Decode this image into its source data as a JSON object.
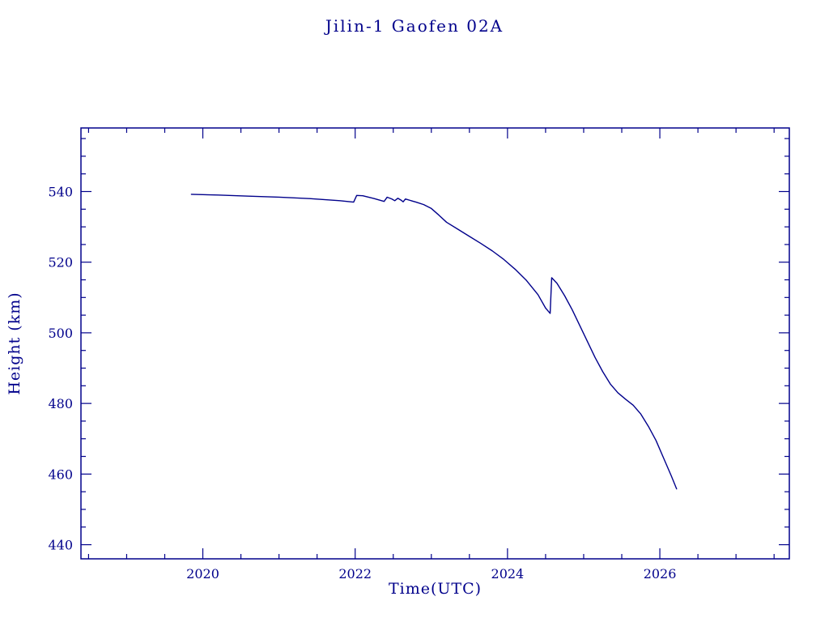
{
  "page": {
    "background": "#ffffff"
  },
  "chart_data": {
    "type": "line",
    "title": "Jilin-1 Gaofen 02A",
    "xlabel": "Time(UTC)",
    "ylabel": "Height (km)",
    "xlim": [
      2018.4,
      2027.7
    ],
    "ylim": [
      436,
      558
    ],
    "x_major_ticks": [
      2020,
      2022,
      2024,
      2026
    ],
    "x_minor_step": 0.5,
    "y_major_ticks": [
      440,
      460,
      480,
      500,
      520,
      540
    ],
    "y_minor_step": 5,
    "grid": false,
    "legend": "none",
    "line_color": "#00008b",
    "axis_color": "#00008b",
    "series": [
      {
        "name": "height",
        "points": [
          [
            2019.85,
            539.2
          ],
          [
            2020.2,
            539.0
          ],
          [
            2020.6,
            538.7
          ],
          [
            2021.0,
            538.4
          ],
          [
            2021.4,
            538.0
          ],
          [
            2021.8,
            537.4
          ],
          [
            2021.98,
            537.0
          ],
          [
            2022.02,
            538.9
          ],
          [
            2022.1,
            538.8
          ],
          [
            2022.25,
            538.0
          ],
          [
            2022.38,
            537.2
          ],
          [
            2022.42,
            538.4
          ],
          [
            2022.48,
            537.9
          ],
          [
            2022.52,
            537.4
          ],
          [
            2022.56,
            538.1
          ],
          [
            2022.6,
            537.6
          ],
          [
            2022.63,
            537.1
          ],
          [
            2022.66,
            537.9
          ],
          [
            2022.72,
            537.5
          ],
          [
            2022.8,
            537.0
          ],
          [
            2022.9,
            536.3
          ],
          [
            2023.0,
            535.2
          ],
          [
            2023.1,
            533.3
          ],
          [
            2023.2,
            531.3
          ],
          [
            2023.35,
            529.3
          ],
          [
            2023.5,
            527.3
          ],
          [
            2023.65,
            525.3
          ],
          [
            2023.8,
            523.2
          ],
          [
            2023.95,
            520.8
          ],
          [
            2024.1,
            518.0
          ],
          [
            2024.25,
            514.8
          ],
          [
            2024.4,
            510.8
          ],
          [
            2024.5,
            507.0
          ],
          [
            2024.56,
            505.5
          ],
          [
            2024.58,
            515.6
          ],
          [
            2024.65,
            514.0
          ],
          [
            2024.75,
            510.5
          ],
          [
            2024.85,
            506.5
          ],
          [
            2024.95,
            502.0
          ],
          [
            2025.05,
            497.5
          ],
          [
            2025.15,
            493.0
          ],
          [
            2025.25,
            489.0
          ],
          [
            2025.35,
            485.5
          ],
          [
            2025.45,
            483.0
          ],
          [
            2025.55,
            481.2
          ],
          [
            2025.65,
            479.5
          ],
          [
            2025.75,
            477.0
          ],
          [
            2025.85,
            473.5
          ],
          [
            2025.95,
            469.5
          ],
          [
            2026.05,
            464.5
          ],
          [
            2026.15,
            459.5
          ],
          [
            2026.22,
            455.8
          ]
        ]
      }
    ]
  }
}
